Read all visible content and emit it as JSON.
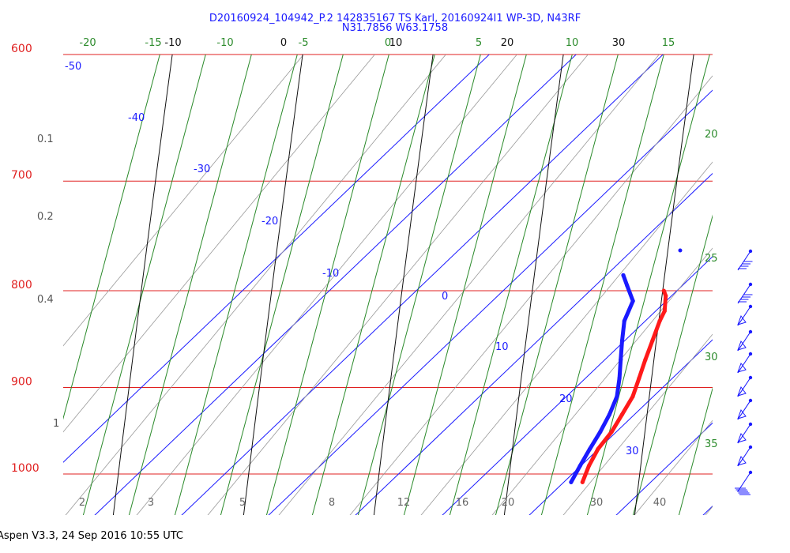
{
  "chart_data": {
    "type": "line",
    "title": "D20160924_104942_P.2 142835167 TS Karl, 20160924I1 WP-3D, N43RF",
    "subtitle": "N31.7856 W63.1758",
    "footer": "Aspen V3.3, 24 Sep 2016  10:55 UTC",
    "pressure_axis": {
      "labels": [
        "600",
        "700",
        "800",
        "900",
        "1000"
      ],
      "color": "#e02020"
    },
    "mixing_ratio_labels": [
      "0.1",
      "0.2",
      "0.4",
      "1"
    ],
    "mixing_ratio_bottom_labels": [
      "2",
      "3",
      "5",
      "8",
      "12",
      "16",
      "20",
      "30",
      "40"
    ],
    "isotherm_labels_blue": [
      "-50",
      "-40",
      "-30",
      "-20",
      "-10",
      "0",
      "10",
      "20",
      "30"
    ],
    "top_labels_green": [
      "-20",
      "-15",
      "-10",
      "-5",
      "0",
      "5",
      "10",
      "15"
    ],
    "top_labels_black": [
      "-10",
      "0",
      "10",
      "20",
      "30"
    ],
    "right_labels_green": [
      "20",
      "25",
      "30",
      "35"
    ],
    "series": [
      {
        "role": "temperature",
        "color": "#ff1a1a",
        "points": [
          {
            "p": 1010,
            "t": 25.6
          },
          {
            "p": 990,
            "t": 26.0
          },
          {
            "p": 970,
            "t": 26.8
          },
          {
            "p": 950,
            "t": 28.3
          },
          {
            "p": 930,
            "t": 29.3
          },
          {
            "p": 910,
            "t": 30.3
          },
          {
            "p": 890,
            "t": 30.6
          },
          {
            "p": 870,
            "t": 30.9
          },
          {
            "p": 850,
            "t": 31.3
          },
          {
            "p": 830,
            "t": 31.7
          },
          {
            "p": 820,
            "t": 32.1
          },
          {
            "p": 805,
            "t": 31.7
          },
          {
            "p": 800,
            "t": 31.2
          }
        ]
      },
      {
        "role": "dewpoint",
        "color": "#1a1aff",
        "points": [
          {
            "p": 1010,
            "t": 23.8
          },
          {
            "p": 990,
            "t": 24.6
          },
          {
            "p": 970,
            "t": 25.5
          },
          {
            "p": 950,
            "t": 26.5
          },
          {
            "p": 930,
            "t": 27.3
          },
          {
            "p": 910,
            "t": 27.8
          },
          {
            "p": 890,
            "t": 27.5
          },
          {
            "p": 870,
            "t": 27.0
          },
          {
            "p": 850,
            "t": 26.5
          },
          {
            "p": 830,
            "t": 26.1
          },
          {
            "p": 810,
            "t": 26.7
          },
          {
            "p": 795,
            "t": 25.2
          },
          {
            "p": 785,
            "t": 24.2
          }
        ]
      }
    ],
    "wind_barbs_visible": true
  }
}
